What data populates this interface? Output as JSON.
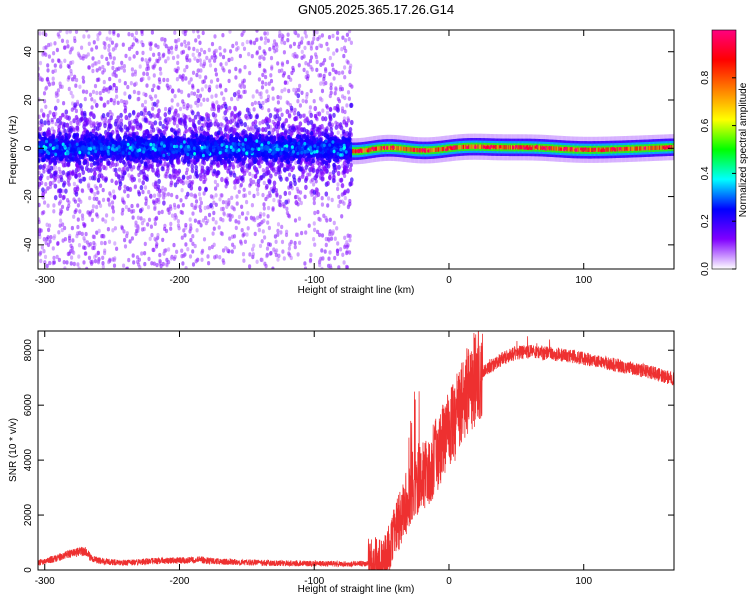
{
  "figure": {
    "title": "GN05.2025.365.17.26.G14"
  },
  "chart_data": [
    {
      "type": "heatmap",
      "title": "GN05.2025.365.17.26.G14",
      "xlabel": "Height of straight line (km)",
      "ylabel": "Frequency (Hz)",
      "xlim": [
        -305,
        167
      ],
      "ylim": [
        -50,
        49
      ],
      "x_ticks": [
        -300,
        -200,
        -100,
        0,
        100
      ],
      "y_ticks": [
        -40,
        -20,
        0,
        20,
        40
      ],
      "x_tick_labels": [
        "-300",
        "-200",
        "-100",
        "0",
        "100"
      ],
      "y_tick_labels": [
        "-40",
        "-20",
        "0",
        "20",
        "40"
      ],
      "noisy_region": {
        "x_range": [
          -305,
          -72
        ],
        "core_freq_range": [
          -8,
          8
        ],
        "scatter_freq_range": [
          -50,
          49
        ]
      },
      "tracked_region": {
        "x_range": [
          -72,
          167
        ],
        "center_freq_approx": 0,
        "band_halfwidth_hz": 3
      },
      "colorbar": {
        "label": "Normalized spectral amplitude",
        "range": [
          0,
          1
        ],
        "ticks": [
          0.0,
          0.2,
          0.4,
          0.6,
          0.8
        ],
        "tick_labels": [
          "0.0",
          "0.2",
          "0.4",
          "0.6",
          "0.8"
        ],
        "colormap": "rainbow",
        "color_stops": [
          "#ffffff",
          "#8000ff",
          "#0000ff",
          "#00ffff",
          "#00ff00",
          "#ffff00",
          "#ff8000",
          "#ff0000",
          "#ff0080"
        ]
      },
      "grid": false
    },
    {
      "type": "line",
      "xlabel": "Height of straight line (km)",
      "ylabel": "SNR (10 * v/v)",
      "xlim": [
        -305,
        167
      ],
      "ylim": [
        0,
        8700
      ],
      "x_ticks": [
        -300,
        -200,
        -100,
        0,
        100
      ],
      "y_ticks": [
        0,
        2000,
        4000,
        6000,
        8000
      ],
      "x_tick_labels": [
        "-300",
        "-200",
        "-100",
        "0",
        "100"
      ],
      "y_tick_labels": [
        "0",
        "2000",
        "4000",
        "6000",
        "8000"
      ],
      "color": "#ee3030",
      "grid": false,
      "series": [
        {
          "x": [
            -305,
            -290,
            -280,
            -275,
            -270,
            -265,
            -255,
            -240,
            -220,
            -200,
            -185,
            -170,
            -150,
            -130,
            -110,
            -90,
            -75,
            -60,
            -52,
            -48,
            -44,
            -40,
            -36,
            -32,
            -28,
            -26,
            -24,
            -20,
            -16,
            -12,
            -8,
            -4,
            0,
            5,
            10,
            15,
            20,
            25,
            30,
            40,
            50,
            60,
            70,
            80,
            90,
            100,
            110,
            120,
            130,
            140,
            150,
            160,
            167
          ],
          "y": [
            250,
            450,
            600,
            650,
            700,
            400,
            300,
            260,
            320,
            340,
            380,
            300,
            280,
            250,
            240,
            230,
            220,
            240,
            300,
            450,
            800,
            1300,
            1900,
            2400,
            2900,
            3200,
            3100,
            3300,
            3600,
            3900,
            4300,
            4700,
            5000,
            5600,
            6200,
            6700,
            7000,
            7200,
            7400,
            7700,
            7900,
            7950,
            7900,
            7850,
            7800,
            7700,
            7600,
            7500,
            7400,
            7300,
            7200,
            7050,
            6950
          ]
        }
      ]
    }
  ]
}
